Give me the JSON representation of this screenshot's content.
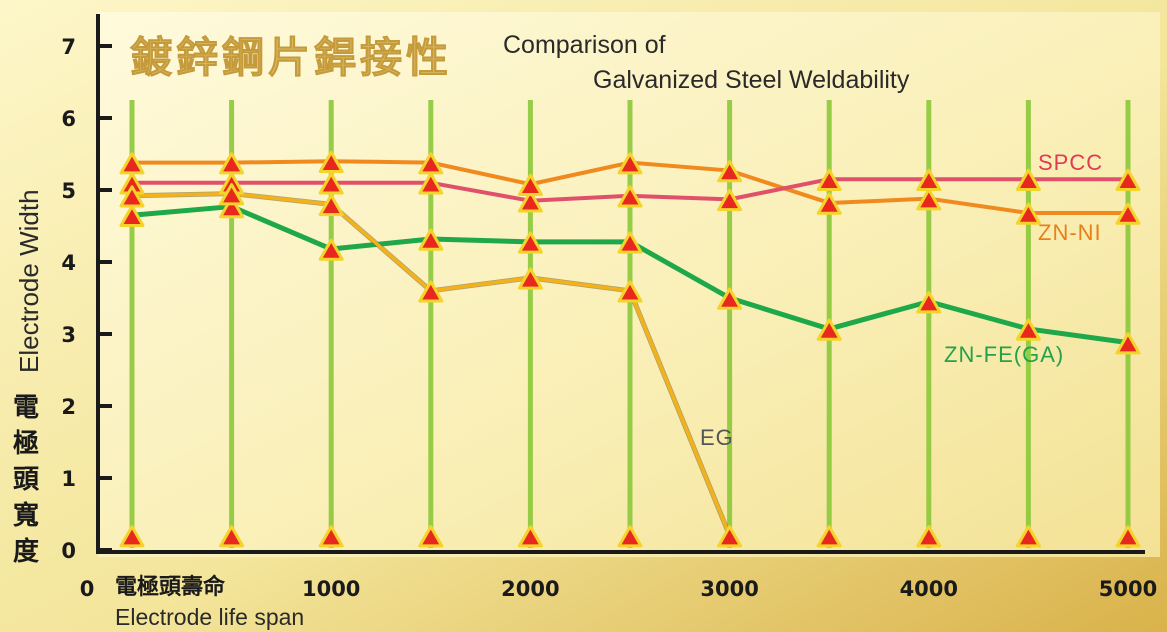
{
  "chart_data": {
    "type": "line",
    "title_cn": "鍍鋅鋼片銲接性",
    "title_en_line1": "Comparison of",
    "title_en_line2": "Galvanized Steel Weldability",
    "ylabel_en": "Electrode Width",
    "ylabel_cn": [
      "電",
      "極",
      "頭",
      "寬",
      "度"
    ],
    "xlabel_cn": "電極頭壽命",
    "xlabel_en": "Electrode life span",
    "x_ticks": [
      "0",
      "1000",
      "2000",
      "3000",
      "4000",
      "5000"
    ],
    "y_ticks": [
      "0",
      "1",
      "2",
      "3",
      "4",
      "5",
      "6",
      "7"
    ],
    "xlim": [
      0,
      5000
    ],
    "ylim": [
      0,
      7
    ],
    "x": [
      0,
      500,
      1000,
      1500,
      2000,
      2500,
      3000,
      3500,
      4000,
      4500,
      5000
    ],
    "base_markers_y": 0.2,
    "series": [
      {
        "name": "SPCC",
        "color": "#e0506a",
        "label_color": "#e03a55",
        "x": [
          0,
          500,
          1000,
          1500,
          2000,
          2500,
          3000,
          3500,
          4000,
          4500,
          5000
        ],
        "values": [
          5.1,
          5.1,
          5.1,
          5.1,
          4.85,
          4.92,
          4.87,
          5.15,
          5.15,
          5.15,
          5.15
        ]
      },
      {
        "name": "ZN-NI",
        "color": "#f08a1e",
        "label_color": "#e8801a",
        "x": [
          0,
          500,
          1000,
          1500,
          2000,
          2500,
          3000,
          3500,
          4000,
          4500,
          5000
        ],
        "values": [
          5.38,
          5.38,
          5.4,
          5.38,
          5.08,
          5.38,
          5.27,
          4.82,
          4.88,
          4.68,
          4.68
        ]
      },
      {
        "name": "ZN-FE(GA)",
        "color": "#1fa84a",
        "label_color": "#22a24a",
        "x": [
          0,
          500,
          1000,
          1500,
          2000,
          2500,
          3000,
          3500,
          4000,
          4500,
          5000
        ],
        "values": [
          4.65,
          4.77,
          4.18,
          4.32,
          4.28,
          4.28,
          3.5,
          3.07,
          3.45,
          3.07,
          2.88
        ]
      },
      {
        "name": "EG",
        "color": "#f4b21a",
        "label_color": "#555555",
        "x": [
          0,
          500,
          1000,
          1500,
          2000,
          2500,
          3000
        ],
        "values": [
          4.92,
          4.95,
          4.8,
          3.6,
          3.78,
          3.6,
          0.2
        ]
      }
    ],
    "colors": {
      "marker_fill": "#e8271f",
      "marker_stroke": "#f4d32a",
      "vertical_lines": "#8cc83a",
      "axis": "#1a1a1a",
      "background_start": "#fdf6c8",
      "background_end": "#d9b24a"
    }
  }
}
